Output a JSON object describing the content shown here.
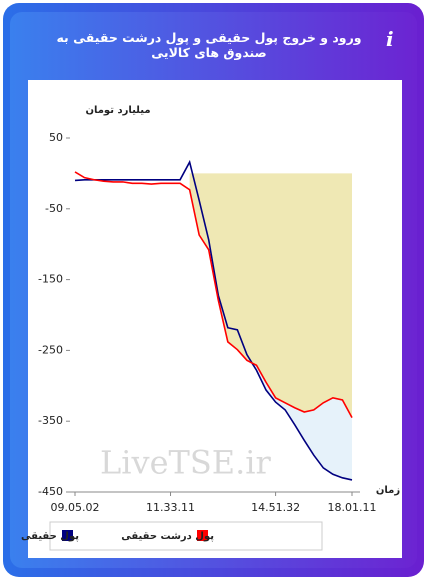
{
  "title": "ورود و خروج پول حقیقی و پول درشت حقیقی به صندوق های کالایی",
  "watermark": "LiveTSE.ir",
  "chart_data": {
    "type": "line",
    "y_label": "میلیارد تومان",
    "x_label": "زمان",
    "categories": [
      "09.05.02",
      null,
      null,
      null,
      null,
      null,
      null,
      null,
      null,
      null,
      "11.33.11",
      null,
      null,
      null,
      null,
      null,
      null,
      null,
      null,
      null,
      null,
      "14.51.32",
      null,
      null,
      null,
      null,
      null,
      null,
      null,
      "18.01.11"
    ],
    "ylim": [
      -450,
      50
    ],
    "yticks": [
      50,
      -50,
      -150,
      -250,
      -350,
      -450
    ],
    "grid": false,
    "series": [
      {
        "name": "پول حقیقی",
        "color": "#000080",
        "values": [
          -10,
          -9,
          -9,
          -9,
          -9,
          -9,
          -9,
          -9,
          -9,
          -9,
          -9,
          -9,
          16,
          -38,
          -94,
          -172,
          -218,
          -221,
          -256,
          -278,
          -306,
          -323,
          -334,
          -355,
          -377,
          -398,
          -416,
          -425,
          -430,
          -433
        ]
      },
      {
        "name": "پول درشت حقیقی",
        "color": "#ff0000",
        "values": [
          2,
          -6,
          -9,
          -11,
          -12,
          -12,
          -14,
          -14,
          -15,
          -14,
          -14,
          -14,
          -23,
          -87,
          -108,
          -179,
          -238,
          -249,
          -264,
          -271,
          -295,
          -317,
          -324,
          -331,
          -337,
          -334,
          -324,
          -317,
          -320,
          -345
        ]
      }
    ]
  }
}
